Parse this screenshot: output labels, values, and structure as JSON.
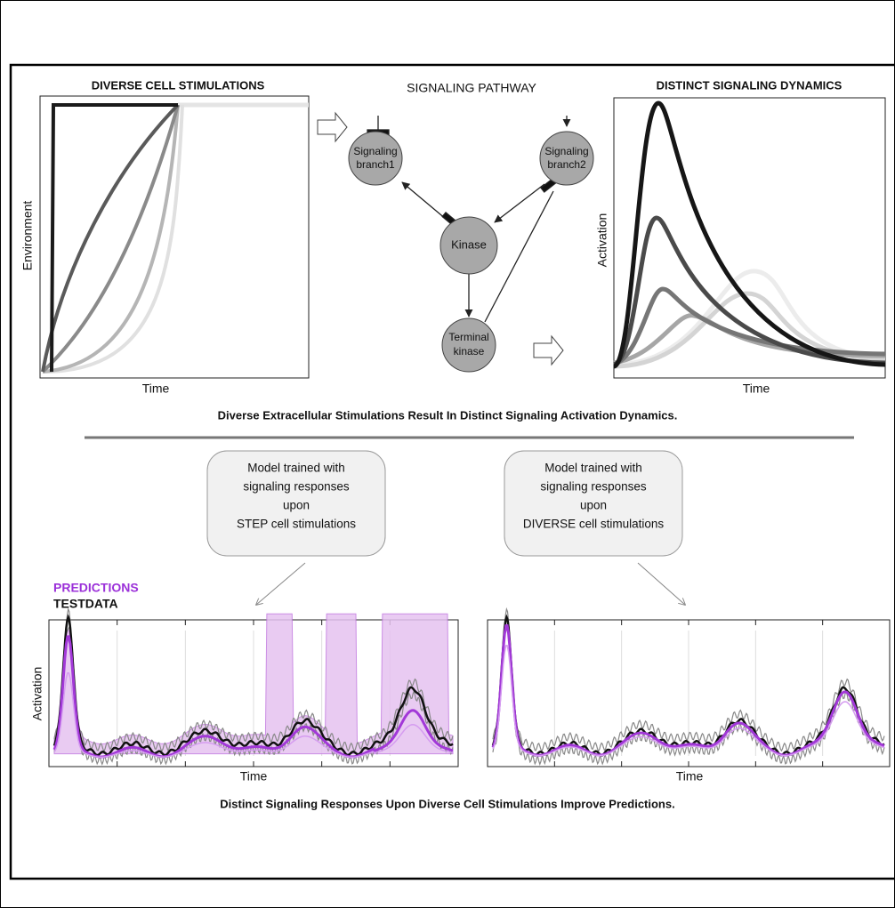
{
  "stimulations": {
    "title": "DIVERSE CELL STIMULATIONS",
    "x_label": "Time",
    "y_label": "Environment"
  },
  "pathway": {
    "title": "SIGNALING PATHWAY",
    "nodes": [
      {
        "lines": [
          "Signaling",
          "branch1"
        ]
      },
      {
        "lines": [
          "Signaling",
          "branch2"
        ]
      },
      {
        "lines": [
          "Kinase"
        ]
      },
      {
        "lines": [
          "Terminal",
          "kinase"
        ]
      }
    ]
  },
  "dynamics": {
    "title": "DISTINCT SIGNALING DYNAMICS",
    "x_label": "Time",
    "y_label": "Activation"
  },
  "caption_top": "Diverse Extracellular Stimulations Result In Distinct Signaling Activation Dynamics.",
  "models": [
    {
      "lines": [
        "Model trained with",
        "signaling responses",
        "upon",
        "STEP cell stimulations"
      ]
    },
    {
      "lines": [
        "Model trained with",
        "signaling responses",
        "upon",
        "DIVERSE cell stimulations"
      ]
    }
  ],
  "legend": {
    "predictions": "PREDICTIONS",
    "testdata": "TESTDATA"
  },
  "prediction_plots": [
    {
      "x_label": "Time",
      "y_label": "Activation"
    },
    {
      "x_label": "Time"
    }
  ],
  "caption_bottom": "Distinct Signaling Responses Upon Diverse Cell Stimulations Improve Predictions."
}
